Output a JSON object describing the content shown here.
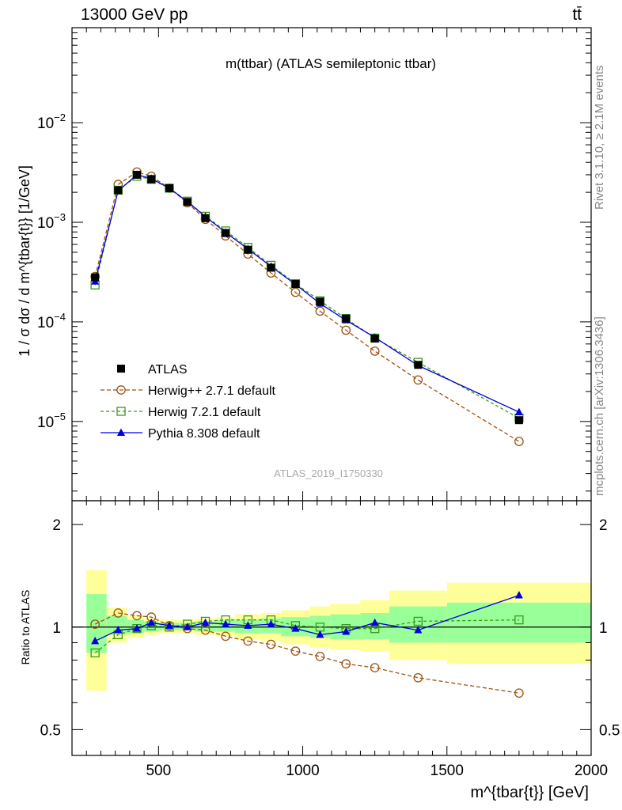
{
  "header": {
    "left": "13000 GeV pp",
    "right": "tt̄"
  },
  "side": {
    "rivet": "Rivet 3.1.10, ≥ 2.1M events",
    "mcplots": "mcplots.cern.ch [arXiv:1306.3436]"
  },
  "main": {
    "title": "m(ttbar) (ATLAS semileptonic ttbar)",
    "ylabel": "1 / σ dσ / d m^{tbar{t}} [1/GeV]",
    "analysis_tag": "ATLAS_2019_I1750330",
    "ytick_labels": [
      "10^{-2}",
      "10^{-3}",
      "10^{-4}",
      "10^{-5}"
    ]
  },
  "ratio": {
    "ylabel": "Ratio to ATLAS",
    "xlabel": "m^{tbar{t}} [GeV]",
    "ytick_labels": [
      "2",
      "1",
      "0.5"
    ],
    "xtick_labels": [
      "500",
      "1000",
      "1500",
      "2000"
    ]
  },
  "colors": {
    "atlas": "#000000",
    "herwigpp": "#a0520e",
    "herwig7": "#3a9a1a",
    "pythia": "#0000dd",
    "band_inner": "#99ff99",
    "band_outer": "#ffff99"
  },
  "chart_data": [
    {
      "type": "scatter",
      "scale": "log",
      "title": "m(ttbar) (ATLAS semileptonic ttbar)",
      "xlabel": "",
      "ylabel": "1 / σ dσ / d m^{tbar{t}} [1/GeV]",
      "xlim": [
        200,
        2000
      ],
      "ylim": [
        1.6e-06,
        0.09
      ],
      "grid": false,
      "legend_position": "middle-left",
      "x": [
        280,
        360,
        425,
        475,
        537.5,
        600,
        662.5,
        732.5,
        810,
        890,
        975,
        1060,
        1150,
        1250,
        1400,
        1750
      ],
      "series": [
        {
          "name": "ATLAS",
          "values": [
            0.00028,
            0.0021,
            0.003,
            0.0027,
            0.0022,
            0.0016,
            0.0011,
            0.00078,
            0.00053,
            0.00035,
            0.00024,
            0.00016,
            0.000108,
            6.8e-05,
            3.7e-05,
            1.03e-05
          ]
        },
        {
          "name": "Herwig++ 2.7.1 default",
          "values": [
            0.000285,
            0.0024,
            0.0032,
            0.0029,
            0.0022,
            0.00157,
            0.00107,
            0.00073,
            0.00048,
            0.00031,
            0.000198,
            0.000128,
            8.25e-05,
            5.08e-05,
            2.61e-05,
            6.3e-06
          ]
        },
        {
          "name": "Herwig 7.2.1 default",
          "values": [
            0.000235,
            0.0021,
            0.0029,
            0.0027,
            0.0022,
            0.00163,
            0.00115,
            0.00082,
            0.00056,
            0.00037,
            0.000242,
            0.000163,
            0.000108,
            6.87e-05,
            3.92e-05,
            1.08e-05
          ]
        },
        {
          "name": "Pythia 8.308 default",
          "values": [
            0.000255,
            0.00207,
            0.003,
            0.00275,
            0.0022,
            0.00161,
            0.00114,
            0.00079,
            0.00054,
            0.00036,
            0.000238,
            0.000153,
            0.000104,
            6.98e-05,
            3.65e-05,
            1.24e-05
          ]
        }
      ]
    },
    {
      "type": "line",
      "scale": "log",
      "xlabel": "m^{tbar{t}} [GeV]",
      "ylabel": "Ratio to ATLAS",
      "xlim": [
        200,
        2000
      ],
      "ylim": [
        0.42,
        2.35
      ],
      "grid": false,
      "reference_line": 1,
      "bins": [
        [
          250,
          320
        ],
        [
          320,
          390
        ],
        [
          390,
          450
        ],
        [
          450,
          500
        ],
        [
          500,
          575
        ],
        [
          575,
          625
        ],
        [
          625,
          700
        ],
        [
          700,
          765
        ],
        [
          765,
          855
        ],
        [
          855,
          925
        ],
        [
          925,
          1025
        ],
        [
          1025,
          1095
        ],
        [
          1095,
          1200
        ],
        [
          1200,
          1300
        ],
        [
          1300,
          1500
        ],
        [
          1500,
          2000
        ]
      ],
      "band_inner": [
        [
          0.84,
          1.25
        ],
        [
          0.95,
          1.08
        ],
        [
          0.96,
          1.05
        ],
        [
          0.97,
          1.04
        ],
        [
          0.98,
          1.03
        ],
        [
          0.98,
          1.03
        ],
        [
          0.97,
          1.04
        ],
        [
          0.97,
          1.05
        ],
        [
          0.96,
          1.05
        ],
        [
          0.96,
          1.06
        ],
        [
          0.94,
          1.07
        ],
        [
          0.93,
          1.08
        ],
        [
          0.92,
          1.09
        ],
        [
          0.92,
          1.1
        ],
        [
          0.9,
          1.15
        ],
        [
          0.9,
          1.18
        ]
      ],
      "band_outer": [
        [
          0.65,
          1.47
        ],
        [
          0.9,
          1.14
        ],
        [
          0.93,
          1.08
        ],
        [
          0.95,
          1.06
        ],
        [
          0.96,
          1.05
        ],
        [
          0.96,
          1.05
        ],
        [
          0.95,
          1.06
        ],
        [
          0.94,
          1.07
        ],
        [
          0.92,
          1.09
        ],
        [
          0.91,
          1.1
        ],
        [
          0.89,
          1.12
        ],
        [
          0.87,
          1.15
        ],
        [
          0.86,
          1.17
        ],
        [
          0.85,
          1.2
        ],
        [
          0.8,
          1.28
        ],
        [
          0.78,
          1.35
        ]
      ],
      "x": [
        280,
        360,
        425,
        475,
        537.5,
        600,
        662.5,
        732.5,
        810,
        890,
        975,
        1060,
        1150,
        1250,
        1400,
        1750
      ],
      "series": [
        {
          "name": "Herwig++ 2.7.1 default",
          "values": [
            1.02,
            1.1,
            1.08,
            1.07,
            1.01,
            0.99,
            0.98,
            0.94,
            0.91,
            0.89,
            0.85,
            0.82,
            0.78,
            0.76,
            0.71,
            0.64
          ]
        },
        {
          "name": "Herwig 7.2.1 default",
          "values": [
            0.84,
            0.95,
            0.99,
            1.01,
            1.0,
            1.02,
            1.04,
            1.05,
            1.05,
            1.05,
            1.01,
            1.0,
            0.99,
            0.99,
            1.04,
            1.05
          ]
        },
        {
          "name": "Pythia 8.308 default",
          "values": [
            0.91,
            0.98,
            0.99,
            1.03,
            1.01,
            1.0,
            1.03,
            1.02,
            1.01,
            1.02,
            0.99,
            0.95,
            0.97,
            1.03,
            0.98,
            1.24
          ]
        }
      ]
    }
  ]
}
